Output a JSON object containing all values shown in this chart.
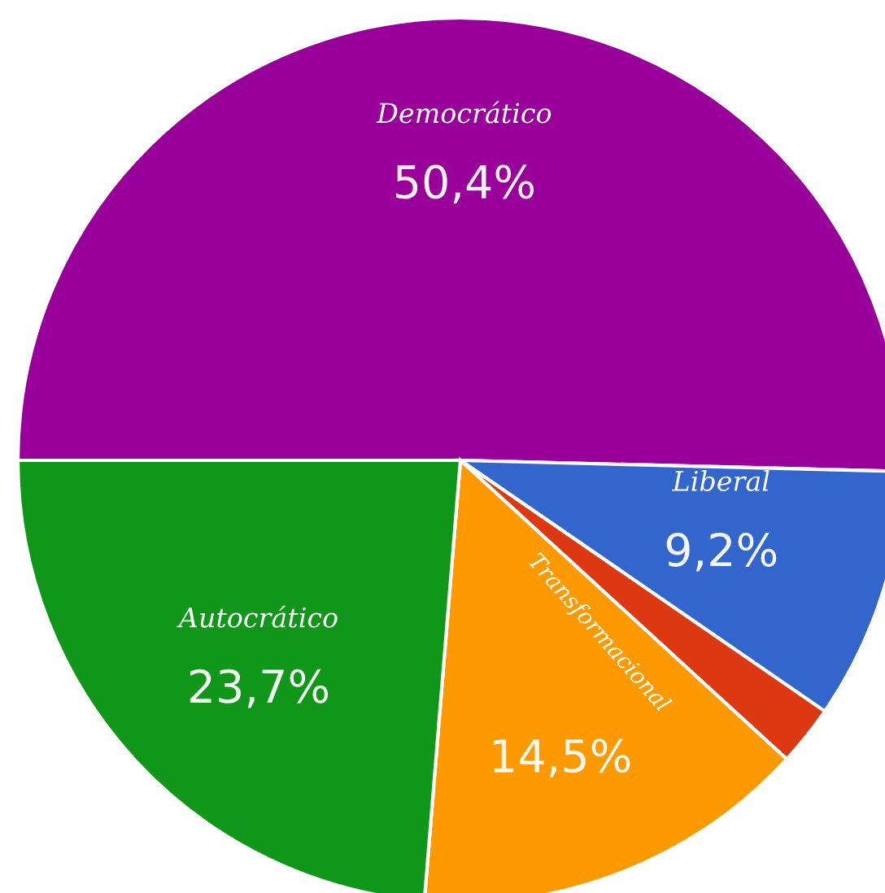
{
  "chart_data": {
    "type": "pie",
    "categories": [
      "Democrático",
      "Liberal",
      null,
      "Transformacional",
      "Autocrático"
    ],
    "values": [
      50.4,
      9.2,
      2.2,
      14.5,
      23.7
    ],
    "value_labels": [
      "50,4%",
      "9,2%",
      null,
      "14,5%",
      "23,7%"
    ],
    "colors": [
      "#990099",
      "#3366cc",
      "#dc3912",
      "#ff9900",
      "#109618"
    ]
  }
}
